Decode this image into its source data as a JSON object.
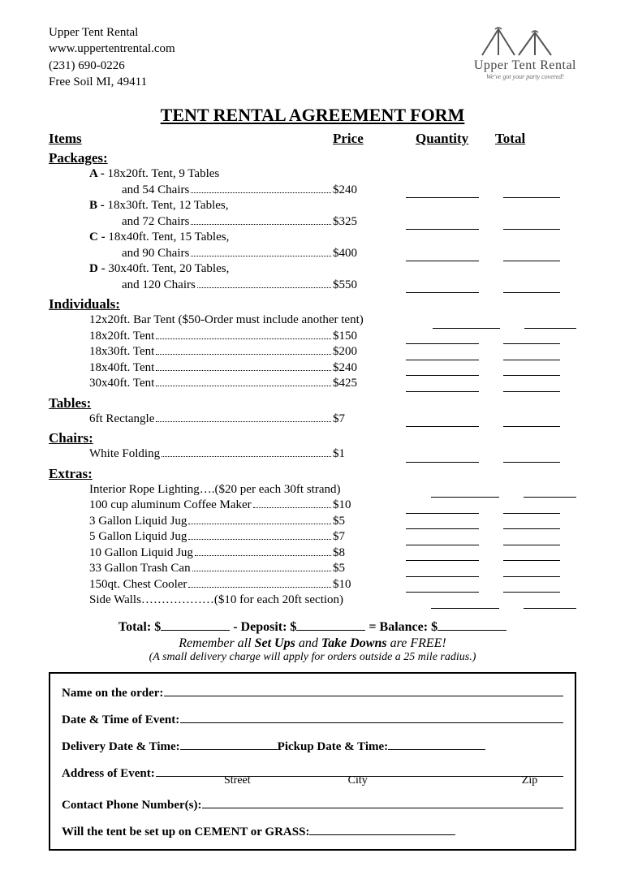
{
  "company": {
    "name": "Upper Tent Rental",
    "website": "www.uppertentrental.com",
    "phone": "(231) 690-0226",
    "address": "Free Soil MI, 49411"
  },
  "logo": {
    "brand": "Upper Tent Rental",
    "tagline": "We've got your party covered!"
  },
  "title": "TENT RENTAL AGREEMENT FORM",
  "headers": {
    "items": "Items",
    "price": "Price",
    "quantity": "Quantity",
    "total": "Total"
  },
  "sections": {
    "packages": {
      "title": "Packages:",
      "items": [
        {
          "label": "A -",
          "line1": " 18x20ft. Tent, 9 Tables",
          "line2": "and 54 Chairs",
          "price": "$240"
        },
        {
          "label": "B -",
          "line1": " 18x30ft. Tent, 12 Tables,",
          "line2": "and 72 Chairs",
          "price": "$325"
        },
        {
          "label": "C -",
          "line1": " 18x40ft. Tent, 15 Tables,",
          "line2": "and 90 Chairs",
          "price": "$400"
        },
        {
          "label": "D -",
          "line1": " 30x40ft. Tent, 20 Tables,",
          "line2": "and 120 Chairs",
          "price": "$550"
        }
      ]
    },
    "individuals": {
      "title": "Individuals:",
      "items": [
        {
          "desc": "12x20ft. Bar Tent ($50-Order must include another tent)",
          "price": "",
          "nodots": true
        },
        {
          "desc": "18x20ft. Tent",
          "price": "$150"
        },
        {
          "desc": "18x30ft. Tent",
          "price": "$200"
        },
        {
          "desc": "18x40ft. Tent",
          "price": "$240"
        },
        {
          "desc": "30x40ft. Tent",
          "price": "$425"
        }
      ]
    },
    "tables": {
      "title": "Tables:",
      "items": [
        {
          "desc": "6ft Rectangle",
          "price": "$7"
        }
      ]
    },
    "chairs": {
      "title": "Chairs:",
      "items": [
        {
          "desc": "White Folding",
          "price": "$1"
        }
      ]
    },
    "extras": {
      "title": "Extras:",
      "items": [
        {
          "desc": "Interior Rope Lighting….($20 per each 30ft strand)",
          "price": "",
          "nodots": true
        },
        {
          "desc": "100 cup aluminum Coffee Maker",
          "price": "$10"
        },
        {
          "desc": "3 Gallon Liquid Jug",
          "price": "$5"
        },
        {
          "desc": "5 Gallon Liquid Jug",
          "price": "$7"
        },
        {
          "desc": "10 Gallon Liquid Jug",
          "price": "$8"
        },
        {
          "desc": "33 Gallon Trash Can",
          "price": "$5"
        },
        {
          "desc": "150qt. Chest Cooler",
          "price": "$10"
        },
        {
          "desc": "Side Walls………………($10 for each 20ft section)",
          "price": "",
          "nodots": true
        }
      ]
    }
  },
  "totals": {
    "total_label": "Total: $",
    "deposit_label": " - Deposit: $",
    "balance_label": " = Balance: $"
  },
  "remember": {
    "prefix": "Remember all ",
    "setups": "Set Ups",
    "and": " and ",
    "takedowns": "Take Downs",
    "suffix": " are FREE!"
  },
  "delivery_note": "(A small delivery charge will apply for orders outside a 25 mile radius.)",
  "form": {
    "name": "Name on the order:",
    "datetime": "Date & Time of Event:",
    "delivery": "Delivery Date & Time:",
    "pickup": " Pickup Date & Time:",
    "address": "Address of Event:",
    "street": "Street",
    "city": "City",
    "zip": "Zip",
    "contact": "Contact Phone Number(s):",
    "surface": "Will the tent be set up on CEMENT or GRASS:"
  }
}
